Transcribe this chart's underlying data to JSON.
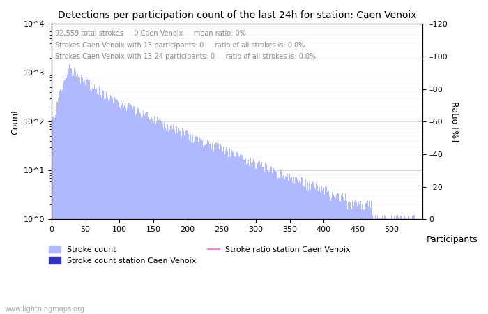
{
  "title": "Detections per participation count of the last 24h for station: Caen Venoix",
  "annotation_lines": [
    "92,559 total strokes     0 Caen Venoix     mean ratio: 0%",
    "Strokes Caen Venoix with 13 participants: 0     ratio of all strokes is: 0.0%",
    "Strokes Caen Venoix with 13-24 participants: 0     ratio of all strokes is: 0.0%"
  ],
  "xlabel": "Participants",
  "ylabel_left": "Count",
  "ylabel_right": "Ratio [%]",
  "xlim": [
    0,
    545
  ],
  "ylim_left": [
    1,
    10000
  ],
  "ylim_right": [
    0,
    120
  ],
  "bar_color": "#b0b8ff",
  "bar_color_station": "#3333bb",
  "line_color": "#ee88cc",
  "watermark": "www.lightningmaps.org",
  "legend_labels": [
    "Stroke count",
    "Stroke count station Caen Venoix",
    "Stroke ratio station Caen Venoix"
  ],
  "yticks_right": [
    0,
    20,
    40,
    60,
    80,
    100,
    120
  ],
  "grid_color": "#cccccc",
  "annotation_color": "#888888"
}
